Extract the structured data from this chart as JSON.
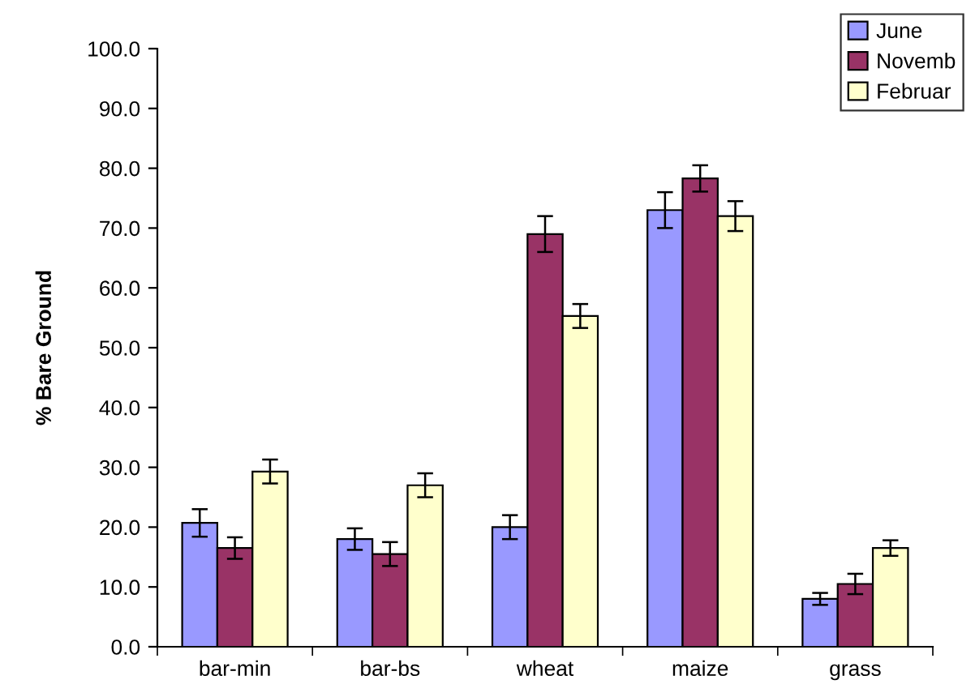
{
  "chart_data": {
    "type": "bar",
    "ylabel": "% Bare Ground",
    "categories": [
      "bar-min",
      "bar-bs",
      "wheat",
      "maize",
      "grass"
    ],
    "series": [
      {
        "name": "June",
        "color": "#9999ff",
        "values": [
          20.7,
          18.0,
          20.0,
          73.0,
          8.0
        ],
        "errors": [
          2.3,
          1.8,
          2.0,
          3.0,
          1.0
        ]
      },
      {
        "name": "Novemb",
        "color": "#993366",
        "values": [
          16.5,
          15.5,
          69.0,
          78.3,
          10.5
        ],
        "errors": [
          1.8,
          2.0,
          3.0,
          2.2,
          1.7
        ]
      },
      {
        "name": "Februar",
        "color": "#ffffcc",
        "values": [
          29.3,
          27.0,
          55.3,
          72.0,
          16.5
        ],
        "errors": [
          2.0,
          2.0,
          2.0,
          2.5,
          1.3
        ]
      }
    ],
    "ylim": [
      0,
      100
    ],
    "yticks": [
      {
        "value": 0,
        "label": "0.0"
      },
      {
        "value": 10,
        "label": "10.0"
      },
      {
        "value": 20,
        "label": "20.0"
      },
      {
        "value": 30,
        "label": "30.0"
      },
      {
        "value": 40,
        "label": "40.0"
      },
      {
        "value": 50,
        "label": "50.0"
      },
      {
        "value": 60,
        "label": "60.0"
      },
      {
        "value": 70,
        "label": "70.0"
      },
      {
        "value": 80,
        "label": "80.0"
      },
      {
        "value": 90,
        "label": "90.0"
      },
      {
        "value": 100,
        "label": "100.0"
      }
    ],
    "grid": false,
    "legend": "top right"
  }
}
